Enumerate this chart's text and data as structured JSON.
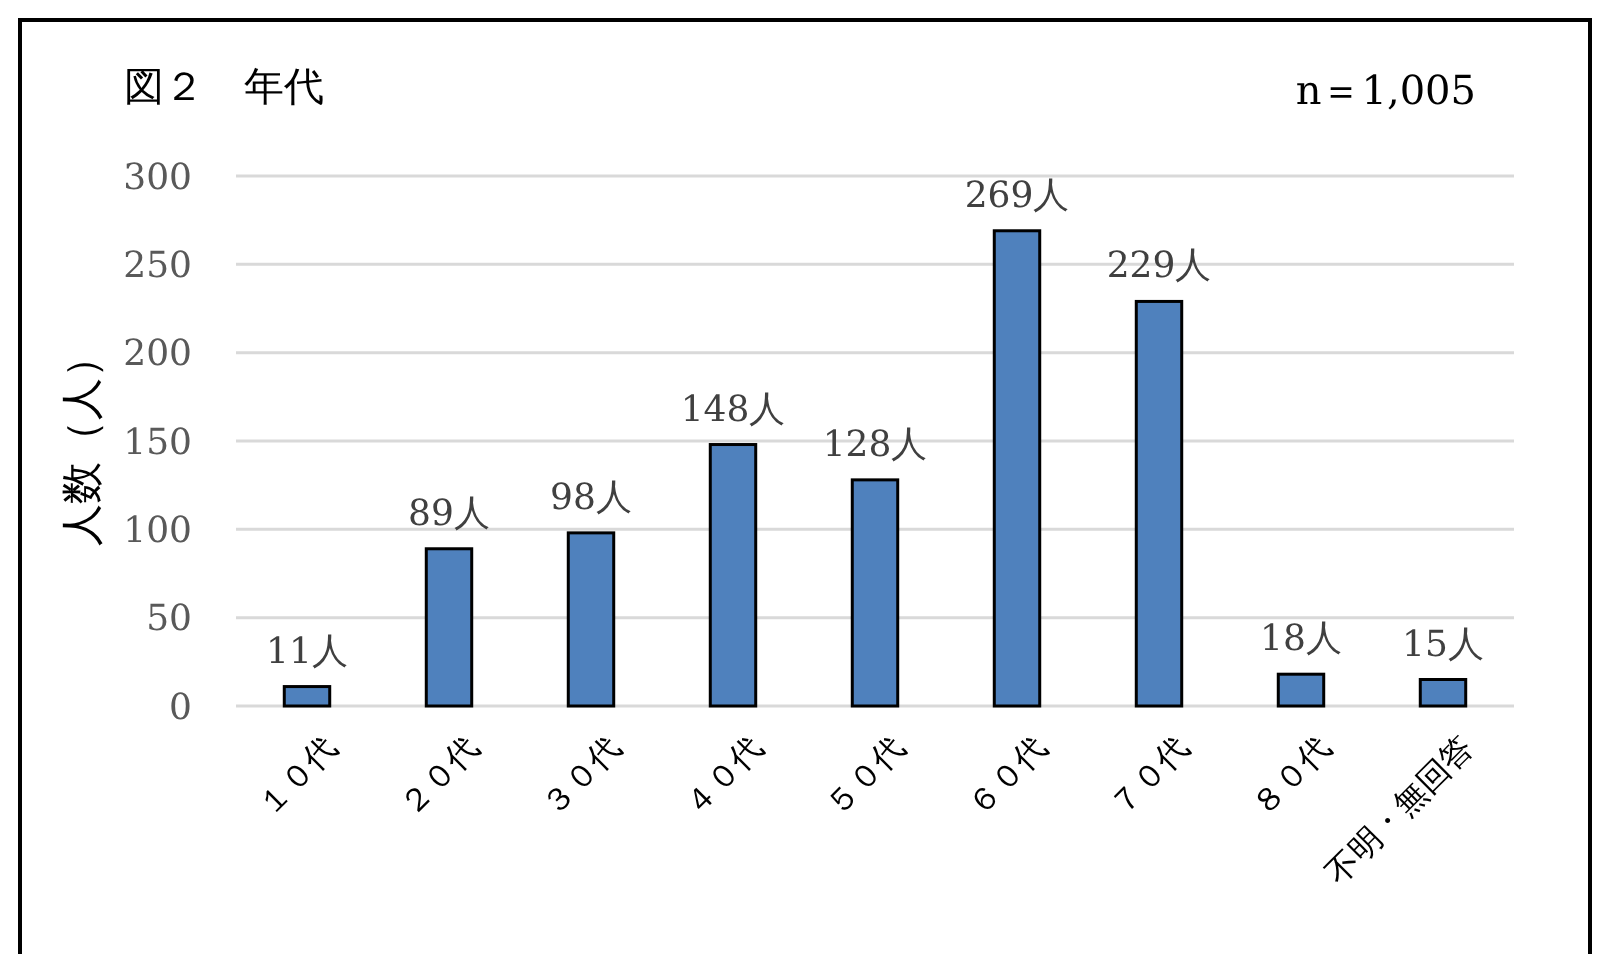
{
  "chart_data": {
    "type": "bar",
    "title": "図２　年代",
    "ylabel": "人数（人）",
    "annotations": [
      "n＝1,005"
    ],
    "categories": [
      "１０代",
      "２０代",
      "３０代",
      "４０代",
      "５０代",
      "６０代",
      "７０代",
      "８０代",
      "不明・無回答"
    ],
    "values": [
      11,
      89,
      98,
      148,
      128,
      269,
      229,
      18,
      15
    ],
    "value_labels": [
      "11人",
      "89人",
      "98人",
      "148人",
      "128人",
      "269人",
      "229人",
      "18人",
      "15人"
    ],
    "color": "#4f81bd",
    "ylim": [
      0,
      300
    ],
    "yticks": [
      0,
      50,
      100,
      150,
      200,
      250,
      300
    ],
    "grid": "y"
  }
}
